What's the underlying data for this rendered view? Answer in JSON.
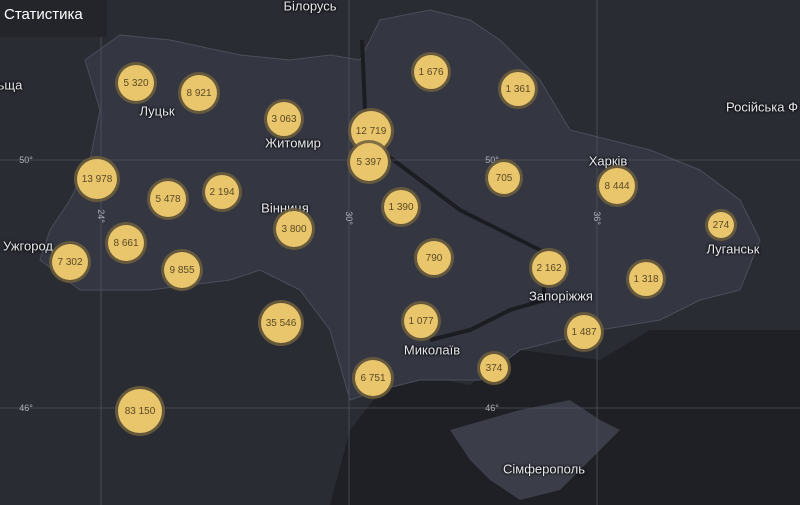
{
  "header": {
    "title": "Статистика"
  },
  "places": [
    {
      "name": "Білорусь"
    },
    {
      "name": "Луцьк"
    },
    {
      "name": "Житомир"
    },
    {
      "name": "Вінниця"
    },
    {
      "name": "Ужгород"
    },
    {
      "name": "Харків"
    },
    {
      "name": "Луганськ"
    },
    {
      "name": "Запоріжжя"
    },
    {
      "name": "Миколаїв"
    },
    {
      "name": "Сімферополь"
    },
    {
      "name": "Російська Ф"
    },
    {
      "name": "ьща"
    }
  ],
  "graticule": {
    "lat": [
      "50°",
      "50°",
      "46°",
      "46°"
    ],
    "lon": [
      "24°",
      "30°",
      "36°"
    ]
  },
  "clusters": [
    "5 320",
    "8 921",
    "3 063",
    "12 719",
    "5 397",
    "1 676",
    "1 361",
    "13 978",
    "5 478",
    "2 194",
    "705",
    "8 444",
    "1 390",
    "274",
    "3 800",
    "8 661",
    "7 302",
    "9 855",
    "790",
    "2 162",
    "1 318",
    "35 546",
    "1 077",
    "1 487",
    "6 751",
    "374",
    "83 150"
  ],
  "colors": {
    "bubble": "#e9c56c",
    "land": "#33363f",
    "sea": "#1f2026",
    "background": "#2a2c33"
  }
}
